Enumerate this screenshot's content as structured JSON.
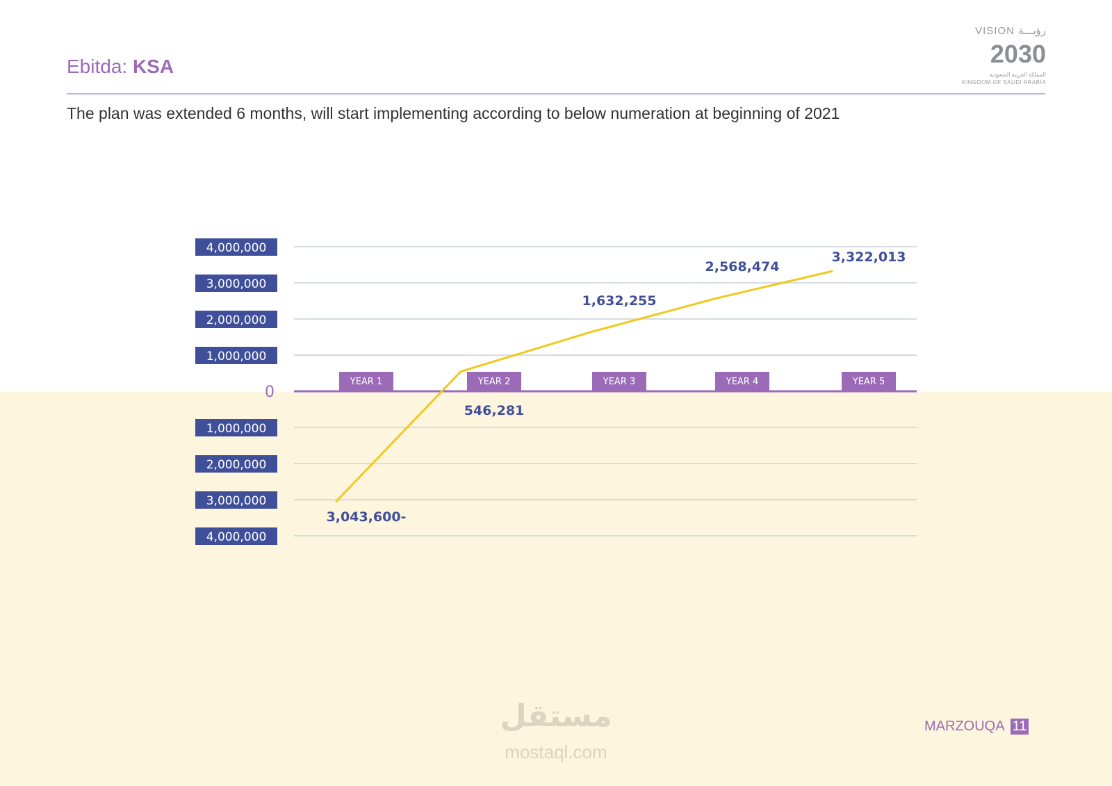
{
  "header": {
    "title_prefix": "Ebitda: ",
    "title_bold": "KSA",
    "subtitle": "The plan was extended 6 months, will start implementing according to below numeration at beginning of 2021"
  },
  "logo": {
    "vision": "VISION رؤيـــة",
    "year": "2030",
    "arabic": "المملكة العربية السعودية",
    "english": "KINGDOM OF SAUDI ARABIA"
  },
  "footer": {
    "brand": "MARZOUQA",
    "page": "11"
  },
  "watermark": {
    "arabic": "مستقل",
    "latin": "mostaql.com"
  },
  "colors": {
    "axis_label_bg": "#3f4f9a",
    "year_label_bg": "#9b6bb8",
    "line": "#f2c81e",
    "value_text": "#3f4f9a",
    "negative_region": "#fdf5de"
  },
  "chart_data": {
    "type": "line",
    "categories": [
      "YEAR 1",
      "YEAR 2",
      "YEAR 3",
      "YEAR 4",
      "YEAR 5"
    ],
    "values": [
      -3043600,
      546281,
      1632255,
      2568474,
      3322013
    ],
    "data_labels": [
      "3,043,600-",
      "546,281",
      "1,632,255",
      "2,568,474",
      "3,322,013"
    ],
    "ylim": [
      -4000000,
      4000000
    ],
    "y_tick_values": [
      4000000,
      3000000,
      2000000,
      1000000,
      0,
      -1000000,
      -2000000,
      -3000000,
      -4000000
    ],
    "y_tick_labels": [
      "4,000,000",
      "3,000,000",
      "2,000,000",
      "1,000,000",
      "0",
      "1,000,000",
      "2,000,000",
      "3,000,000",
      "4,000,000"
    ],
    "grid": true,
    "title": "",
    "xlabel": "",
    "ylabel": ""
  }
}
